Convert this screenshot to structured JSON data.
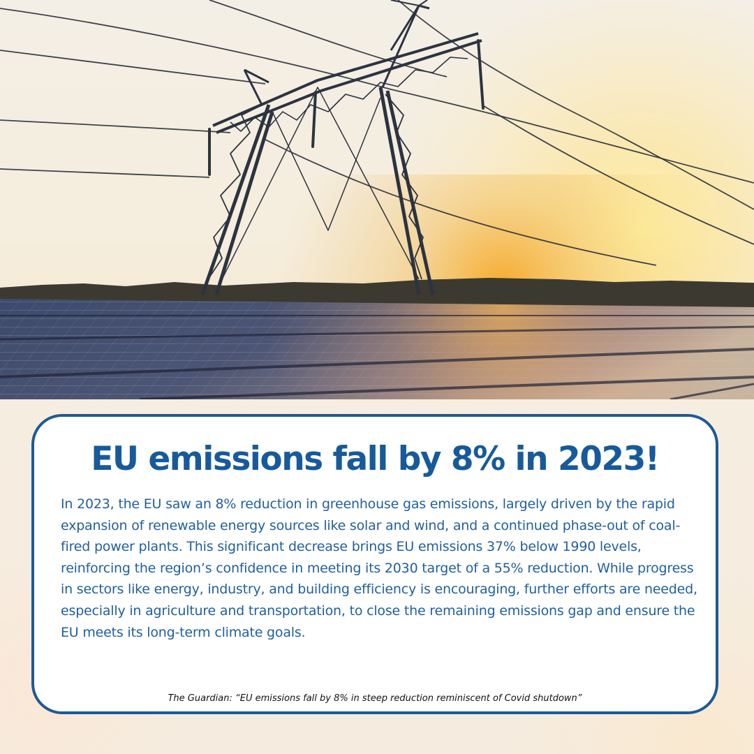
{
  "headline": "EU emissions fall by 8% in 2023!",
  "body": "In 2023, the EU saw an 8% reduction in greenhouse gas emissions, largely driven by the rapid expansion of renewable energy sources like solar and wind, and a continued phase-out of coal-fired power plants. This significant decrease brings EU emissions 37% below 1990 levels, reinforcing the region’s confidence in meeting its 2030 target of a 55% reduction. While progress in sectors like energy, industry, and building efficiency is encouraging, further efforts are needed, especially in agriculture and transportation, to close the remaining emissions gap and ensure the EU meets its long-term climate goals.",
  "source": "The Guardian: “EU emissions fall by 8% in steep reduction reminiscent of Covid shutdown”",
  "colors": {
    "accent": "#175a9c",
    "card_border": "#1d5a98",
    "card_background": "#ffffff",
    "page_background": "#f6eee2",
    "source_text": "#111111"
  }
}
